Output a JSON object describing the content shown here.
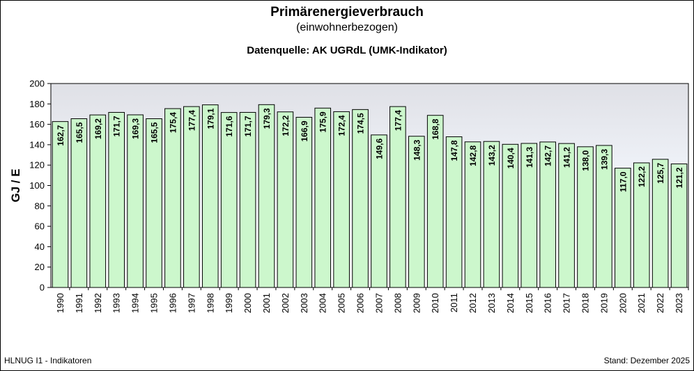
{
  "header": {
    "title": "Primärenergieverbrauch",
    "subtitle": "(einwohnerbezogen)",
    "source": "Datenquelle: AK UGRdL (UMK-Indikator)"
  },
  "footer": {
    "left": "HLNUG I1 - Indikatoren",
    "right": "Stand: Dezember 2025"
  },
  "colors": {
    "bar_fill": "#ccf7cc",
    "bar_stroke": "#000000",
    "plot_top": "#dfe0e6",
    "plot_mid": "#eef1f7",
    "plot_bottom": "#ffffff"
  },
  "chart_data": {
    "type": "bar",
    "ylabel": "GJ / E",
    "xlabel": "",
    "ylim": [
      0,
      200
    ],
    "yticks": [
      0,
      20,
      40,
      60,
      80,
      100,
      120,
      140,
      160,
      180,
      200
    ],
    "grid": false,
    "categories": [
      "1990",
      "1991",
      "1992",
      "1993",
      "1994",
      "1995",
      "1996",
      "1997",
      "1998",
      "1999",
      "2000",
      "2001",
      "2002",
      "2003",
      "2004",
      "2005",
      "2006",
      "2007",
      "2008",
      "2009",
      "2010",
      "2011",
      "2012",
      "2013",
      "2014",
      "2015",
      "2016",
      "2017",
      "2018",
      "2019",
      "2020",
      "2021",
      "2022",
      "2023"
    ],
    "values": [
      162.7,
      165.5,
      169.2,
      171.7,
      169.3,
      165.5,
      175.4,
      177.4,
      179.1,
      171.6,
      171.7,
      179.3,
      172.2,
      166.9,
      175.9,
      172.4,
      174.5,
      149.6,
      177.4,
      148.3,
      168.8,
      147.8,
      142.8,
      143.2,
      140.4,
      141.3,
      142.7,
      141.2,
      138.0,
      139.3,
      117.0,
      122.2,
      125.7,
      121.2
    ],
    "data_labels": [
      "162,7",
      "165,5",
      "169,2",
      "171,7",
      "169,3",
      "165,5",
      "175,4",
      "177,4",
      "179,1",
      "171,6",
      "171,7",
      "179,3",
      "172,2",
      "166,9",
      "175,9",
      "172,4",
      "174,5",
      "149,6",
      "177,4",
      "148,3",
      "168,8",
      "147,8",
      "142,8",
      "143,2",
      "140,4",
      "141,3",
      "142,7",
      "141,2",
      "138,0",
      "139,3",
      "117,0",
      "122,2",
      "125,7",
      "121,2"
    ]
  }
}
